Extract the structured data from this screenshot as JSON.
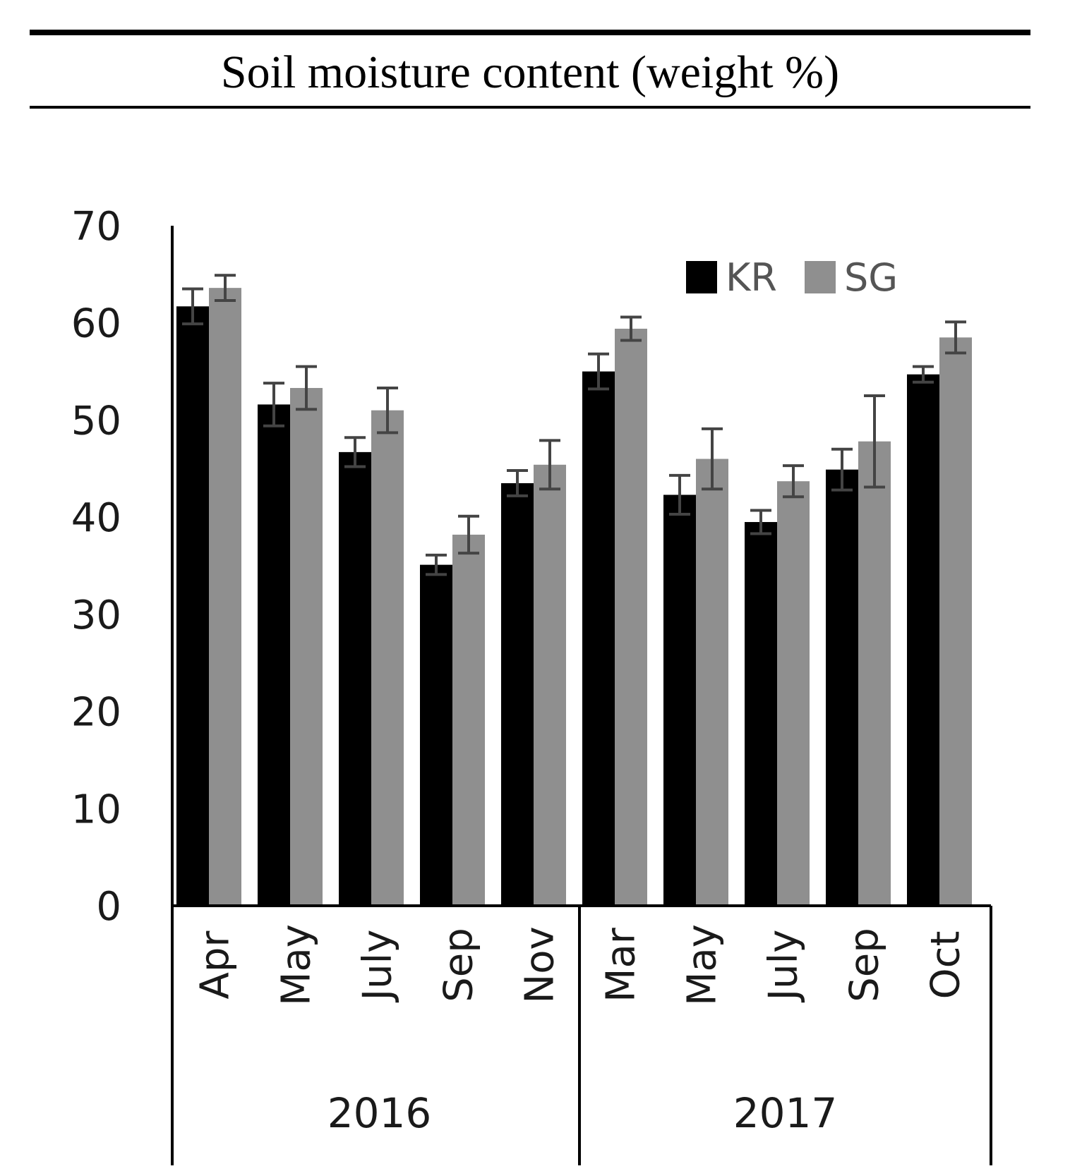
{
  "title": "Soil moisture content (weight %)",
  "colors": {
    "KR": "#000000",
    "SG": "#8f8f8f",
    "error_bar": "#444444",
    "axis": "#000000"
  },
  "chart_data": {
    "type": "bar",
    "title": "Soil moisture content (weight %)",
    "xlabel": "",
    "ylabel": "",
    "ylim": [
      0,
      70
    ],
    "yticks": [
      "0",
      "10",
      "20",
      "30",
      "40",
      "50",
      "60",
      "70"
    ],
    "grid": false,
    "legend_position": "top-right",
    "categories": [
      "Apr",
      "May",
      "July",
      "Sep",
      "Nov",
      "Mar",
      "May",
      "July",
      "Sep",
      "Oct"
    ],
    "groups": [
      {
        "label": "2016",
        "count": 5
      },
      {
        "label": "2017",
        "count": 5
      }
    ],
    "series": [
      {
        "name": "KR",
        "values": [
          61.7,
          51.6,
          46.7,
          35.1,
          43.5,
          55.0,
          42.3,
          39.5,
          44.9,
          54.7
        ],
        "errors": [
          1.8,
          2.2,
          1.5,
          1.0,
          1.3,
          1.8,
          2.0,
          1.2,
          2.1,
          0.8
        ]
      },
      {
        "name": "SG",
        "values": [
          63.6,
          53.3,
          51.0,
          38.2,
          45.4,
          59.4,
          46.0,
          43.7,
          47.8,
          58.5
        ],
        "errors": [
          1.3,
          2.2,
          2.3,
          1.9,
          2.5,
          1.2,
          3.1,
          1.6,
          4.7,
          1.6
        ]
      }
    ]
  }
}
